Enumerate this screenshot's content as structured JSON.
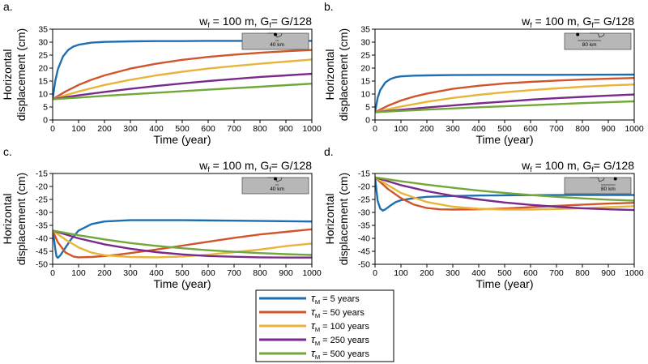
{
  "colors": {
    "tau5": "#1f6fb0",
    "tau50": "#d0552b",
    "tau100": "#e8b53a",
    "tau250": "#7a2a8c",
    "tau500": "#72a83a",
    "inset_fill": "#b7b7b7"
  },
  "xlabel": "Time (year)",
  "ylabel_line1": "Horizontal",
  "ylabel_line2": "displacement (cm)",
  "legend": {
    "symbol": "τ",
    "subscript": "M",
    "entries": [
      " = 5 years",
      " = 50 years",
      " = 100 years",
      " = 250 years",
      " = 500 years"
    ]
  },
  "chart_data": [
    {
      "type": "line",
      "panel_label": "a.",
      "title_w": "w",
      "title_w_sub": "f",
      "title_mid": " = 100 m, G",
      "title_g_sub": "f",
      "title_end": "= G/128",
      "inset_label": "40 km",
      "inset_marker": 0.5,
      "xlim": [
        0,
        1000
      ],
      "ylim": [
        0,
        35
      ],
      "xticks": [
        0,
        100,
        200,
        300,
        400,
        500,
        600,
        700,
        800,
        900,
        1000
      ],
      "yticks": [
        0,
        5,
        10,
        15,
        20,
        25,
        30,
        35
      ],
      "series": [
        {
          "name": "τM = 5 years",
          "x": [
            0,
            10,
            20,
            40,
            60,
            80,
            100,
            150,
            200,
            300,
            400,
            500,
            600,
            700,
            800,
            900,
            1000
          ],
          "y": [
            8,
            15,
            19.5,
            24.5,
            27,
            28.3,
            29,
            29.8,
            30.1,
            30.3,
            30.4,
            30.4,
            30.5,
            30.5,
            30.5,
            30.5,
            30.5
          ]
        },
        {
          "name": "τM = 50 years",
          "x": [
            0,
            50,
            100,
            150,
            200,
            300,
            400,
            500,
            600,
            700,
            800,
            900,
            1000
          ],
          "y": [
            8,
            11,
            13.5,
            15.5,
            17.2,
            19.8,
            21.7,
            23.2,
            24.3,
            25.2,
            25.9,
            26.5,
            27
          ]
        },
        {
          "name": "τM = 100 years",
          "x": [
            0,
            100,
            200,
            300,
            400,
            500,
            600,
            700,
            800,
            900,
            1000
          ],
          "y": [
            8,
            11,
            13.5,
            15.5,
            17.2,
            18.6,
            19.8,
            20.8,
            21.7,
            22.5,
            23.3
          ]
        },
        {
          "name": "τM = 250 years",
          "x": [
            0,
            100,
            200,
            300,
            400,
            500,
            600,
            700,
            800,
            900,
            1000
          ],
          "y": [
            8,
            9.5,
            10.8,
            12,
            13.1,
            14.1,
            15,
            15.8,
            16.6,
            17.2,
            17.8
          ]
        },
        {
          "name": "τM = 500 years",
          "x": [
            0,
            200,
            400,
            600,
            800,
            1000
          ],
          "y": [
            8,
            9.3,
            10.5,
            11.7,
            12.8,
            14
          ]
        }
      ]
    },
    {
      "type": "line",
      "panel_label": "b.",
      "title_w": "w",
      "title_w_sub": "f",
      "title_mid": " = 100 m, G",
      "title_g_sub": "f",
      "title_end": "= G/128",
      "inset_label": "80 km",
      "inset_marker": 0.1,
      "xlim": [
        0,
        1000
      ],
      "ylim": [
        0,
        35
      ],
      "xticks": [
        0,
        100,
        200,
        300,
        400,
        500,
        600,
        700,
        800,
        900,
        1000
      ],
      "yticks": [
        0,
        5,
        10,
        15,
        20,
        25,
        30,
        35
      ],
      "series": [
        {
          "name": "τM = 5 years",
          "x": [
            0,
            10,
            20,
            40,
            60,
            80,
            100,
            150,
            200,
            300,
            500,
            700,
            1000
          ],
          "y": [
            3,
            8.5,
            11.5,
            14.5,
            15.8,
            16.5,
            16.8,
            17.1,
            17.2,
            17.3,
            17.4,
            17.4,
            17.5
          ]
        },
        {
          "name": "τM = 50 years",
          "x": [
            0,
            50,
            100,
            150,
            200,
            300,
            400,
            500,
            600,
            700,
            800,
            900,
            1000
          ],
          "y": [
            3,
            5.5,
            7.5,
            9,
            10.2,
            12,
            13.2,
            14.1,
            14.7,
            15.2,
            15.6,
            15.9,
            16.2
          ]
        },
        {
          "name": "τM = 100 years",
          "x": [
            0,
            100,
            200,
            300,
            400,
            500,
            600,
            700,
            800,
            900,
            1000
          ],
          "y": [
            3,
            5.2,
            7,
            8.5,
            9.7,
            10.7,
            11.5,
            12.2,
            12.8,
            13.3,
            13.7
          ]
        },
        {
          "name": "τM = 250 years",
          "x": [
            0,
            100,
            200,
            300,
            400,
            500,
            600,
            700,
            800,
            900,
            1000
          ],
          "y": [
            3,
            3.9,
            4.8,
            5.6,
            6.4,
            7.1,
            7.8,
            8.4,
            8.9,
            9.4,
            9.8
          ]
        },
        {
          "name": "τM = 500 years",
          "x": [
            0,
            200,
            400,
            600,
            800,
            1000
          ],
          "y": [
            3,
            4,
            4.9,
            5.7,
            6.5,
            7.2
          ]
        }
      ]
    },
    {
      "type": "line",
      "panel_label": "c.",
      "title_w": "w",
      "title_w_sub": "f",
      "title_mid": " = 100 m, G",
      "title_g_sub": "f",
      "title_end": "= G/128",
      "inset_label": "40 km",
      "inset_marker": 0.5,
      "xlim": [
        0,
        1000
      ],
      "ylim": [
        -50,
        -15
      ],
      "xticks": [
        0,
        100,
        200,
        300,
        400,
        500,
        600,
        700,
        800,
        900,
        1000
      ],
      "yticks": [
        -50,
        -45,
        -40,
        -35,
        -30,
        -25,
        -20,
        -15
      ],
      "series": [
        {
          "name": "τM = 5 years",
          "x": [
            0,
            5,
            10,
            15,
            20,
            30,
            40,
            50,
            70,
            100,
            150,
            200,
            300,
            400,
            500,
            700,
            1000
          ],
          "y": [
            -37,
            -40,
            -44,
            -47,
            -47.5,
            -46.5,
            -45,
            -43.5,
            -40.5,
            -37,
            -34.5,
            -33.5,
            -33,
            -33,
            -33,
            -33.2,
            -33.5
          ]
        },
        {
          "name": "τM = 50 years",
          "x": [
            0,
            20,
            50,
            80,
            100,
            150,
            200,
            250,
            300,
            400,
            500,
            600,
            700,
            800,
            900,
            1000
          ],
          "y": [
            -37,
            -41.5,
            -45.5,
            -47,
            -47.3,
            -47.2,
            -46.8,
            -46.3,
            -45.7,
            -44.3,
            -42.8,
            -41.3,
            -39.8,
            -38.5,
            -37.5,
            -36.5
          ]
        },
        {
          "name": "τM = 100 years",
          "x": [
            0,
            50,
            100,
            150,
            200,
            300,
            400,
            500,
            600,
            700,
            800,
            900,
            1000
          ],
          "y": [
            -37,
            -40.5,
            -43.5,
            -45.5,
            -46.5,
            -47.2,
            -47.3,
            -47,
            -46.3,
            -45.3,
            -44.3,
            -43,
            -42
          ]
        },
        {
          "name": "τM = 250 years",
          "x": [
            0,
            100,
            200,
            300,
            400,
            500,
            600,
            700,
            800,
            900,
            1000
          ],
          "y": [
            -37,
            -40,
            -42.3,
            -44,
            -45.3,
            -46.2,
            -46.8,
            -47.1,
            -47.3,
            -47.4,
            -47.4
          ]
        },
        {
          "name": "τM = 500 years",
          "x": [
            0,
            100,
            200,
            300,
            400,
            500,
            600,
            700,
            800,
            900,
            1000
          ],
          "y": [
            -37,
            -38.8,
            -40.4,
            -41.8,
            -42.9,
            -43.8,
            -44.6,
            -45.2,
            -45.7,
            -46.1,
            -46.4
          ]
        }
      ]
    },
    {
      "type": "line",
      "panel_label": "d.",
      "title_w": "w",
      "title_w_sub": "f",
      "title_mid": " = 100 m, G",
      "title_g_sub": "f",
      "title_end": "= G/128",
      "inset_label": "80 km",
      "inset_marker": 0.85,
      "xlim": [
        0,
        1000
      ],
      "ylim": [
        -50,
        -15
      ],
      "xticks": [
        0,
        100,
        200,
        300,
        400,
        500,
        600,
        700,
        800,
        900,
        1000
      ],
      "yticks": [
        -50,
        -45,
        -40,
        -35,
        -30,
        -25,
        -20,
        -15
      ],
      "series": [
        {
          "name": "τM = 5 years",
          "x": [
            0,
            5,
            10,
            20,
            30,
            40,
            60,
            80,
            100,
            150,
            200,
            300,
            400,
            500,
            700,
            1000
          ],
          "y": [
            -16.5,
            -21,
            -25.5,
            -28.5,
            -29.3,
            -28.8,
            -27.3,
            -26,
            -25.3,
            -24.5,
            -24,
            -23.7,
            -23.5,
            -23.4,
            -23.3,
            -23.3
          ]
        },
        {
          "name": "τM = 50 years",
          "x": [
            0,
            50,
            100,
            150,
            200,
            250,
            300,
            400,
            500,
            600,
            700,
            800,
            900,
            1000
          ],
          "y": [
            -16.5,
            -21,
            -24.5,
            -27,
            -28.3,
            -28.8,
            -28.9,
            -28.8,
            -28.5,
            -28,
            -27.5,
            -27,
            -26.6,
            -26.3
          ]
        },
        {
          "name": "τM = 100 years",
          "x": [
            0,
            100,
            200,
            300,
            400,
            500,
            600,
            700,
            800,
            900,
            1000
          ],
          "y": [
            -16.5,
            -22.5,
            -26,
            -27.8,
            -28.6,
            -28.9,
            -28.9,
            -28.7,
            -28.4,
            -28,
            -27.6
          ]
        },
        {
          "name": "τM = 250 years",
          "x": [
            0,
            100,
            200,
            300,
            400,
            500,
            600,
            700,
            800,
            900,
            1000
          ],
          "y": [
            -16.5,
            -19.5,
            -21.8,
            -23.6,
            -25,
            -26.2,
            -27.1,
            -27.8,
            -28.4,
            -28.8,
            -29.1
          ]
        },
        {
          "name": "τM = 500 years",
          "x": [
            0,
            100,
            200,
            300,
            400,
            500,
            600,
            700,
            800,
            900,
            1000
          ],
          "y": [
            -16.5,
            -18,
            -19.3,
            -20.5,
            -21.6,
            -22.5,
            -23.3,
            -24,
            -24.6,
            -25.1,
            -25.5
          ]
        }
      ]
    }
  ]
}
